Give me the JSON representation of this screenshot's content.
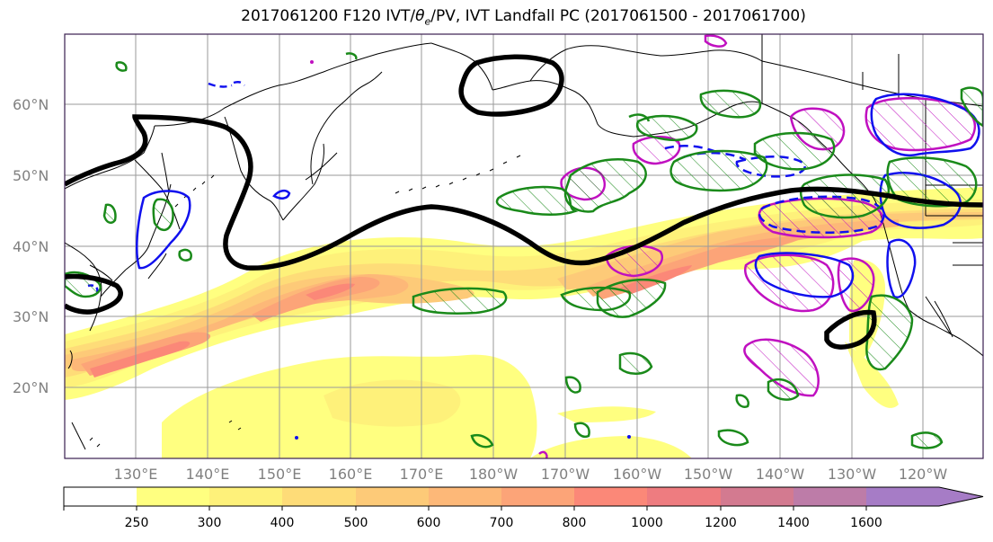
{
  "map": {
    "title_prefix": "2017061200 F120 IVT/",
    "title_theta": "θ",
    "title_theta_sub": "e",
    "title_suffix": "/PV, IVT Landfall PC (2017061500 - 2017061700)",
    "lat_labels": [
      "60°N",
      "50°N",
      "40°N",
      "30°N",
      "20°N"
    ],
    "lon_labels": [
      "130°E",
      "140°E",
      "150°E",
      "160°E",
      "170°E",
      "180°W",
      "170°W",
      "160°W",
      "150°W",
      "140°W",
      "130°W",
      "120°W"
    ],
    "colors": {
      "frame": "#3a1f4f",
      "contour_black": "#000000",
      "contour_green": "#1a8a1a",
      "contour_blue": "#1010ee",
      "contour_magenta": "#c010c0",
      "grid": "#9a9a9a"
    }
  },
  "colorbar": {
    "ticks": [
      "250",
      "300",
      "400",
      "500",
      "600",
      "700",
      "800",
      "1000",
      "1200",
      "1400",
      "1600"
    ],
    "bins": [
      {
        "from": "0",
        "to": "250",
        "color": "#ffffff"
      },
      {
        "from": "250",
        "to": "300",
        "color": "#ffff80"
      },
      {
        "from": "300",
        "to": "400",
        "color": "#fef17a"
      },
      {
        "from": "400",
        "to": "500",
        "color": "#fedc78"
      },
      {
        "from": "500",
        "to": "600",
        "color": "#fdca78"
      },
      {
        "from": "600",
        "to": "700",
        "color": "#fdb878"
      },
      {
        "from": "700",
        "to": "800",
        "color": "#fca478"
      },
      {
        "from": "800",
        "to": "1000",
        "color": "#fb8878"
      },
      {
        "from": "1000",
        "to": "1200",
        "color": "#ee7c80"
      },
      {
        "from": "1200",
        "to": "1400",
        "color": "#d37a90"
      },
      {
        "from": "1400",
        "to": "1600",
        "color": "#bd7ca8"
      },
      {
        "from": "1600",
        "to": ">1600",
        "color": "#a67cc6"
      }
    ]
  }
}
